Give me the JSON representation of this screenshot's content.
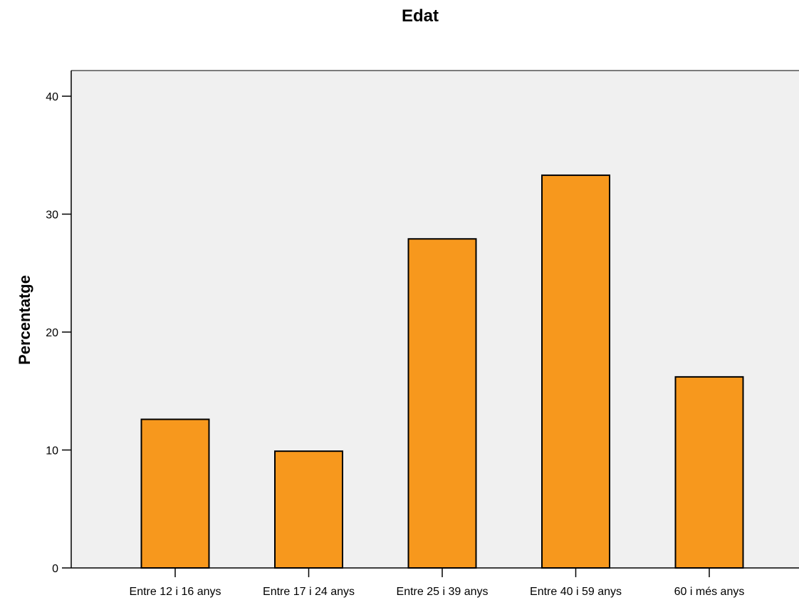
{
  "chart_data": {
    "type": "bar",
    "title": "Edat",
    "xlabel": "",
    "ylabel": "Percentatge",
    "categories": [
      "Entre 12 i 16 anys",
      "Entre 17 i 24 anys",
      "Entre 25 i 39 anys",
      "Entre 40 i 59 anys",
      "60 i més anys"
    ],
    "values": [
      12.6,
      9.9,
      27.9,
      33.3,
      16.2
    ],
    "ylim": [
      0,
      40
    ],
    "yticks": [
      "0",
      "10",
      "20",
      "30",
      "40"
    ],
    "grid": false,
    "legend": "none",
    "colors": {
      "bar_fill": "#F7981D",
      "bar_stroke": "#000000",
      "plot_background": "#F0F0F0",
      "axis": "#000000"
    }
  }
}
